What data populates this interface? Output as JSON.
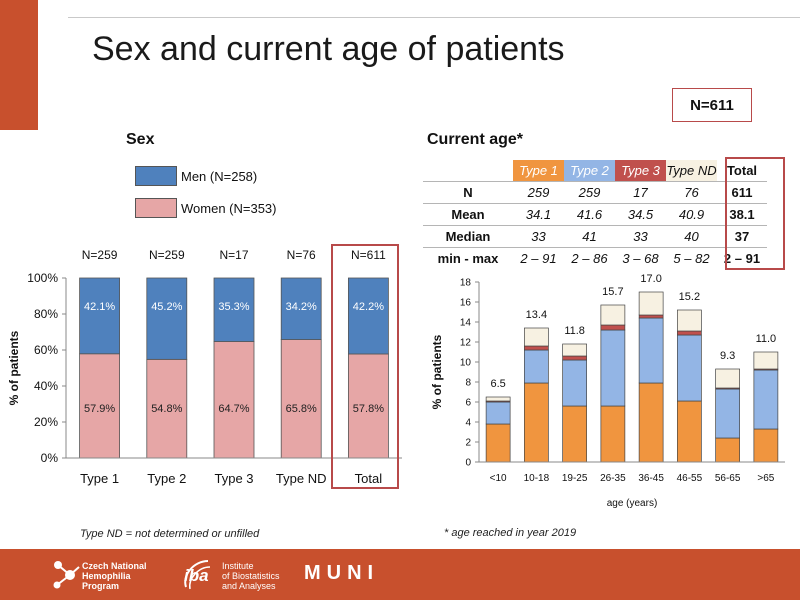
{
  "page": {
    "title": "Sex and current age of patients",
    "total_n": "N=611",
    "sex_heading": "Sex",
    "age_heading": "Current age*",
    "footnote_type_nd": "Type ND = not determined or unfilled",
    "footnote_age": "* age reached in year 2019"
  },
  "colors": {
    "brand": "#c8502d",
    "men": "#4f81bd",
    "women": "#e6a6a6",
    "frame": "#b84a4a",
    "type1": "#f0953f",
    "type2": "#93b5e5",
    "type3": "#c0504d",
    "type_nd": "#f7f1e2"
  },
  "legend": {
    "men": "Men (N=258)",
    "women": "Women (N=353)"
  },
  "stats_table": {
    "header": [
      "Type 1",
      "Type 2",
      "Type 3",
      "Type ND",
      "Total"
    ],
    "rows": [
      {
        "label": "N",
        "values": [
          "259",
          "259",
          "17",
          "76"
        ],
        "total": "611"
      },
      {
        "label": "Mean",
        "values": [
          "34.1",
          "41.6",
          "34.5",
          "40.9"
        ],
        "total": "38.1"
      },
      {
        "label": "Median",
        "values": [
          "33",
          "41",
          "33",
          "40"
        ],
        "total": "37"
      },
      {
        "label": "min - max",
        "values": [
          "2 – 91",
          "2 – 86",
          "3 – 68",
          "5 – 82"
        ],
        "total": "2 – 91"
      }
    ]
  },
  "chart_data": [
    {
      "type": "bar",
      "stacked": true,
      "categories": [
        "Type 1",
        "Type 2",
        "Type 3",
        "Type ND",
        "Total"
      ],
      "top_labels": [
        "N=259",
        "N=259",
        "N=17",
        "N=76",
        "N=611"
      ],
      "series": [
        {
          "name": "Women (N=353)",
          "values": [
            57.9,
            54.8,
            64.7,
            65.8,
            57.8
          ],
          "labels": [
            "57.9%",
            "54.8%",
            "64.7%",
            "65.8%",
            "57.8%"
          ]
        },
        {
          "name": "Men (N=258)",
          "values": [
            42.1,
            45.2,
            35.3,
            34.2,
            42.2
          ],
          "labels": [
            "42.1%",
            "45.2%",
            "35.3%",
            "34.2%",
            "42.2%"
          ]
        }
      ],
      "ylabel": "% of patients",
      "ylim": [
        0,
        100
      ],
      "yticks": [
        "0%",
        "20%",
        "40%",
        "60%",
        "80%",
        "100%"
      ],
      "grid": false
    },
    {
      "type": "bar",
      "stacked": true,
      "categories": [
        "<10",
        "10-18",
        "19-25",
        "26-35",
        "36-45",
        "46-55",
        "56-65",
        ">65"
      ],
      "series": [
        {
          "name": "Type 1",
          "values": [
            3.8,
            7.9,
            5.6,
            5.6,
            7.9,
            6.1,
            2.4,
            3.3
          ]
        },
        {
          "name": "Type 2",
          "values": [
            2.2,
            3.3,
            4.6,
            7.6,
            6.5,
            6.6,
            4.9,
            5.9
          ]
        },
        {
          "name": "Type 3",
          "values": [
            0.1,
            0.4,
            0.4,
            0.5,
            0.3,
            0.4,
            0.1,
            0.1
          ]
        },
        {
          "name": "Type ND",
          "values": [
            0.4,
            1.8,
            1.2,
            2.0,
            2.3,
            2.1,
            1.9,
            1.7
          ]
        }
      ],
      "totals": [
        "6.5",
        "13.4",
        "11.8",
        "15.7",
        "17.0",
        "15.2",
        "9.3",
        "11.0"
      ],
      "xlabel": "age (years)",
      "ylabel": "% of patients",
      "ylim": [
        0,
        18
      ],
      "yticks": [
        "0",
        "2",
        "4",
        "6",
        "8",
        "10",
        "12",
        "14",
        "16",
        "18"
      ],
      "grid": false
    }
  ],
  "footer": {
    "logo1_text": [
      "Czech National",
      "Hemophilia",
      "Program"
    ],
    "logo2_mark": "iba",
    "logo2_text": [
      "Institute",
      "of Biostatistics",
      "and Analyses"
    ],
    "logo3_text": "MUNI"
  }
}
